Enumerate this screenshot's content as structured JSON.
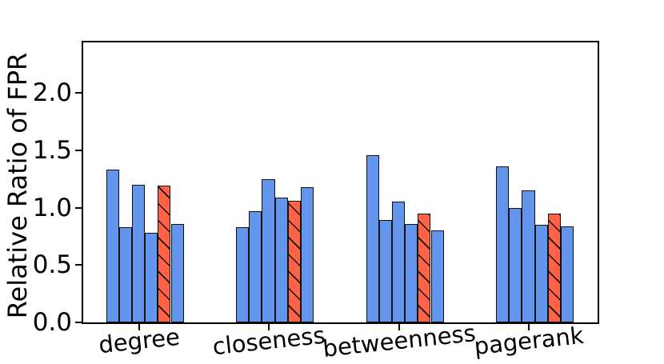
{
  "chart_data": {
    "type": "bar",
    "title": "",
    "ylabel": "Relative Ratio of FPR",
    "xlabel": "",
    "categories": [
      "degree",
      "closeness",
      "betweenness",
      "pagerank"
    ],
    "series": [
      {
        "color": "#6495ED",
        "hatch": false,
        "values": [
          1.33,
          0.83,
          1.46,
          1.36
        ]
      },
      {
        "color": "#6495ED",
        "hatch": false,
        "values": [
          0.83,
          0.97,
          0.89,
          1.0
        ]
      },
      {
        "color": "#6495ED",
        "hatch": false,
        "values": [
          1.2,
          1.25,
          1.05,
          1.15
        ]
      },
      {
        "color": "#6495ED",
        "hatch": false,
        "values": [
          0.78,
          1.09,
          0.86,
          0.85
        ]
      },
      {
        "color": "#FF6347",
        "hatch": true,
        "values": [
          1.19,
          1.06,
          0.95,
          0.95
        ]
      },
      {
        "color": "#6495ED",
        "hatch": false,
        "values": [
          0.86,
          1.18,
          0.8,
          0.84
        ]
      }
    ],
    "bar_edge_color": "#111111",
    "hatch_style": "backslash-diagonal",
    "y_ticks": [
      "0.0",
      "0.5",
      "1.0",
      "1.5",
      "2.0"
    ],
    "y_tick_values": [
      0.0,
      0.5,
      1.0,
      1.5,
      2.0
    ],
    "ylim": [
      0,
      2.44
    ],
    "grid": false,
    "legend": "none",
    "axis_color": "#000000"
  }
}
